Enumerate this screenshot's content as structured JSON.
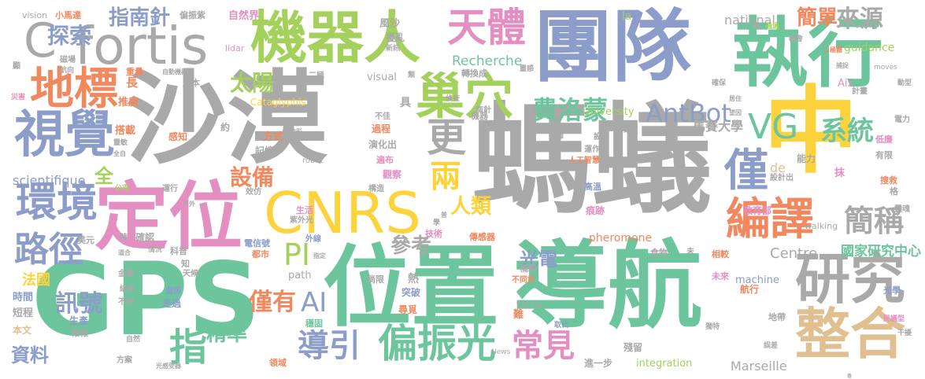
{
  "colors": {
    "gray": "#a9a9a9",
    "green": "#6cc59c",
    "blue": "#8b9dc8",
    "lime": "#a3d15c",
    "orange": "#f0895f",
    "yellow": "#fdd33d",
    "pink": "#e48fc1",
    "tan": "#e0c090"
  },
  "words": [
    {
      "text": "中",
      "color": "yellow"
    },
    {
      "text": "螞蟻",
      "color": "gray"
    },
    {
      "text": "沙漠",
      "color": "gray"
    },
    {
      "text": "導航",
      "color": "green"
    },
    {
      "text": "GPS",
      "color": "green"
    },
    {
      "text": "位置",
      "color": "green"
    },
    {
      "text": "團隊",
      "color": "blue"
    },
    {
      "text": "執行",
      "color": "green"
    },
    {
      "text": "定位",
      "color": "pink"
    },
    {
      "text": "機器人",
      "color": "lime"
    },
    {
      "text": "fortis",
      "color": "gray"
    },
    {
      "text": "C",
      "color": "gray"
    },
    {
      "text": "CNRS",
      "color": "yellow"
    },
    {
      "text": "研究",
      "color": "gray"
    },
    {
      "text": "整合",
      "color": "tan"
    },
    {
      "text": "巢穴",
      "color": "lime"
    },
    {
      "text": "視覺",
      "color": "blue"
    },
    {
      "text": "地標",
      "color": "orange"
    },
    {
      "text": "天體",
      "color": "pink"
    },
    {
      "text": "編譯",
      "color": "orange"
    },
    {
      "text": "偏振光",
      "color": "green"
    },
    {
      "text": "環境",
      "color": "blue"
    },
    {
      "text": "VG",
      "color": "green"
    },
    {
      "text": "路徑",
      "color": "blue"
    },
    {
      "text": "更",
      "color": "gray"
    },
    {
      "text": "僅",
      "color": "blue"
    },
    {
      "text": "AntBot",
      "color": "blue"
    },
    {
      "text": "系統",
      "color": "green"
    },
    {
      "text": "簡稱",
      "color": "gray"
    },
    {
      "text": "導引",
      "color": "blue"
    },
    {
      "text": "兩",
      "color": "yellow"
    },
    {
      "text": "指",
      "color": "green"
    },
    {
      "text": "探索",
      "color": "blue"
    },
    {
      "text": "PI",
      "color": "lime"
    },
    {
      "text": "AI",
      "color": "blue"
    },
    {
      "text": "常見",
      "color": "pink"
    },
    {
      "text": "費洛蒙",
      "color": "green"
    },
    {
      "text": "訊號",
      "color": "blue"
    },
    {
      "text": "來源",
      "color": "gray"
    },
    {
      "text": "簡單",
      "color": "orange"
    },
    {
      "text": "設備",
      "color": "orange"
    },
    {
      "text": "太陽",
      "color": "lime"
    },
    {
      "text": "指南針",
      "color": "blue"
    },
    {
      "text": "僅有",
      "color": "orange"
    },
    {
      "text": "精準",
      "color": "green"
    },
    {
      "text": "人類",
      "color": "yellow"
    },
    {
      "text": "參考",
      "color": "gray"
    },
    {
      "text": "光電",
      "color": "blue"
    },
    {
      "text": "全",
      "color": "lime"
    },
    {
      "text": "資料",
      "color": "blue"
    },
    {
      "text": "法國",
      "color": "yellow"
    },
    {
      "text": "Recherche",
      "color": "green"
    },
    {
      "text": "Centre",
      "color": "gray"
    },
    {
      "text": "國家研究中心",
      "color": "green"
    },
    {
      "text": "馬賽大學",
      "color": "gray"
    },
    {
      "text": "national",
      "color": "gray"
    },
    {
      "text": "scientifique",
      "color": "blue"
    },
    {
      "text": "Marseille",
      "color": "gray"
    },
    {
      "text": "University",
      "color": "lime"
    },
    {
      "text": "Cataglyphis",
      "color": "yellow"
    },
    {
      "text": "guidance",
      "color": "lime"
    },
    {
      "text": "pheromone",
      "color": "orange"
    },
    {
      "text": "integration",
      "color": "lime"
    },
    {
      "text": "machine",
      "color": "blue"
    },
    {
      "text": "path",
      "color": "gray"
    },
    {
      "text": "visual",
      "color": "gray"
    },
    {
      "text": "fortis",
      "color": "gray"
    },
    {
      "text": "la",
      "color": "lime"
    },
    {
      "text": "de",
      "color": "tan"
    },
    {
      "text": "lidar",
      "color": "pink"
    },
    {
      "text": "vision",
      "color": "gray"
    },
    {
      "text": "robot",
      "color": "gray"
    },
    {
      "text": "walking",
      "color": "gray"
    },
    {
      "text": "Aix",
      "color": "pink"
    },
    {
      "text": "News",
      "color": "gray"
    },
    {
      "text": "moves",
      "color": "gray"
    },
    {
      "text": "小馬達",
      "color": "orange"
    },
    {
      "text": "偏振紫",
      "color": "gray"
    },
    {
      "text": "自然界",
      "color": "pink"
    },
    {
      "text": "風沙",
      "color": "gray"
    },
    {
      "text": "擾亂",
      "color": "gray"
    },
    {
      "text": "新訊",
      "color": "gray"
    },
    {
      "text": "轉換成",
      "color": "gray"
    },
    {
      "text": "成本",
      "color": "gray"
    },
    {
      "text": "自動機器人",
      "color": "gray"
    },
    {
      "text": "長",
      "color": "orange"
    },
    {
      "text": "重量",
      "color": "orange"
    },
    {
      "text": "推廣",
      "color": "orange"
    },
    {
      "text": "搭載",
      "color": "orange"
    },
    {
      "text": "感知",
      "color": "orange"
    },
    {
      "text": "方式",
      "color": "orange"
    },
    {
      "text": "過程",
      "color": "orange"
    },
    {
      "text": "演化出",
      "color": "gray"
    },
    {
      "text": "遍布",
      "color": "pink"
    },
    {
      "text": "觀察",
      "color": "pink"
    },
    {
      "text": "記憶",
      "color": "gray"
    },
    {
      "text": "雷達",
      "color": "gray"
    },
    {
      "text": "屏障",
      "color": "gray"
    },
    {
      "text": "運作",
      "color": "gray"
    },
    {
      "text": "人工智慧",
      "color": "orange"
    },
    {
      "text": "能力",
      "color": "gray"
    },
    {
      "text": "抹",
      "color": "pink"
    },
    {
      "text": "高溫",
      "color": "blue"
    },
    {
      "text": "痕跡",
      "color": "pink"
    },
    {
      "text": "教育部",
      "color": "pink"
    },
    {
      "text": "搜救",
      "color": "orange"
    },
    {
      "text": "格",
      "color": "gray"
    },
    {
      "text": "低廉",
      "color": "pink"
    },
    {
      "text": "有限",
      "color": "gray"
    },
    {
      "text": "電力",
      "color": "gray"
    },
    {
      "text": "計畫",
      "color": "gray"
    },
    {
      "text": "機會",
      "color": "gray"
    },
    {
      "text": "通過",
      "color": "lime"
    },
    {
      "text": "二極體",
      "color": "orange"
    },
    {
      "text": "磁場",
      "color": "gray"
    },
    {
      "text": "航向",
      "color": "gray"
    },
    {
      "text": "災害",
      "color": "pink"
    },
    {
      "text": "運行",
      "color": "gray"
    },
    {
      "text": "公克",
      "color": "lime"
    },
    {
      "text": "美元",
      "color": "gray"
    },
    {
      "text": "確認",
      "color": "gray"
    },
    {
      "text": "情況",
      "color": "gray"
    },
    {
      "text": "科普",
      "color": "gray"
    },
    {
      "text": "電信號",
      "color": "blue"
    },
    {
      "text": "都市",
      "color": "orange"
    },
    {
      "text": "外線",
      "color": "blue"
    },
    {
      "text": "紫外光",
      "color": "gray"
    },
    {
      "text": "生活",
      "color": "pink"
    },
    {
      "text": "技術",
      "color": "pink"
    },
    {
      "text": "傳感器",
      "color": "orange"
    },
    {
      "text": "相較",
      "color": "orange"
    },
    {
      "text": "食物",
      "color": "gray"
    },
    {
      "text": "時間",
      "color": "blue"
    },
    {
      "text": "短程",
      "color": "gray"
    },
    {
      "text": "本文",
      "color": "tan"
    },
    {
      "text": "報報",
      "color": "gray"
    },
    {
      "text": "生產",
      "color": "blue"
    },
    {
      "text": "走過",
      "color": "blue"
    },
    {
      "text": "偏振",
      "color": "blue"
    },
    {
      "text": "天候",
      "color": "gray"
    },
    {
      "text": "補助",
      "color": "gray"
    },
    {
      "text": "不同於",
      "color": "orange"
    },
    {
      "text": "突破",
      "color": "blue"
    },
    {
      "text": "尋覓",
      "color": "orange"
    },
    {
      "text": "穩固",
      "color": "green"
    },
    {
      "text": "難",
      "color": "orange"
    },
    {
      "text": "熱",
      "color": "gray"
    },
    {
      "text": "倘限",
      "color": "gray"
    },
    {
      "text": "殘留",
      "color": "gray"
    },
    {
      "text": "進一步",
      "color": "gray"
    },
    {
      "text": "航行",
      "color": "orange"
    },
    {
      "text": "未來",
      "color": "pink"
    },
    {
      "text": "光學",
      "color": "blue"
    },
    {
      "text": "地帶",
      "color": "gray"
    },
    {
      "text": "民議型",
      "color": "pink"
    },
    {
      "text": "干擾",
      "color": "gray"
    },
    {
      "text": "方案",
      "color": "gray"
    },
    {
      "text": "領域",
      "color": "orange"
    },
    {
      "text": "取代",
      "color": "blue"
    },
    {
      "text": "獨特",
      "color": "gray"
    },
    {
      "text": "誤差",
      "color": "gray"
    },
    {
      "text": "金屬",
      "color": "gray"
    },
    {
      "text": "結構",
      "color": "gray"
    },
    {
      "text": "不耐",
      "color": "gray"
    },
    {
      "text": "光感受器",
      "color": "gray"
    },
    {
      "text": "自然",
      "color": "gray"
    },
    {
      "text": "具",
      "color": "gray"
    },
    {
      "text": "類",
      "color": "gray"
    },
    {
      "text": "二極",
      "color": "gray"
    },
    {
      "text": "設計",
      "color": "gray"
    },
    {
      "text": "設計出",
      "color": "gray"
    },
    {
      "text": "構造",
      "color": "gray"
    },
    {
      "text": "不佳",
      "color": "gray"
    },
    {
      "text": "偵查",
      "color": "gray"
    },
    {
      "text": "靈感",
      "color": "gray"
    },
    {
      "text": "機",
      "color": "gray"
    },
    {
      "text": "效仿",
      "color": "gray"
    },
    {
      "text": "約",
      "color": "gray"
    },
    {
      "text": "時",
      "color": "gray"
    },
    {
      "text": "知",
      "color": "gray"
    },
    {
      "text": "未",
      "color": "gray"
    },
    {
      "text": "學",
      "color": "gray"
    },
    {
      "text": "機器",
      "color": "gray"
    },
    {
      "text": "南針",
      "color": "gray"
    },
    {
      "text": "靈魂",
      "color": "gray"
    },
    {
      "text": "確保",
      "color": "gray"
    },
    {
      "text": "居住",
      "color": "gray"
    },
    {
      "text": "望因",
      "color": "gray"
    },
    {
      "text": "動型",
      "color": "gray"
    },
    {
      "text": "捕捉",
      "color": "gray"
    },
    {
      "text": "指定",
      "color": "gray"
    },
    {
      "text": "地形",
      "color": "gray"
    },
    {
      "text": "戶外",
      "color": "gray"
    },
    {
      "text": "道合",
      "color": "gray"
    },
    {
      "text": "靈敏",
      "color": "gray"
    },
    {
      "text": "全自",
      "color": "gray"
    },
    {
      "text": "顯",
      "color": "gray"
    },
    {
      "text": "普",
      "color": "gray"
    },
    {
      "text": "香",
      "color": "gray"
    }
  ]
}
